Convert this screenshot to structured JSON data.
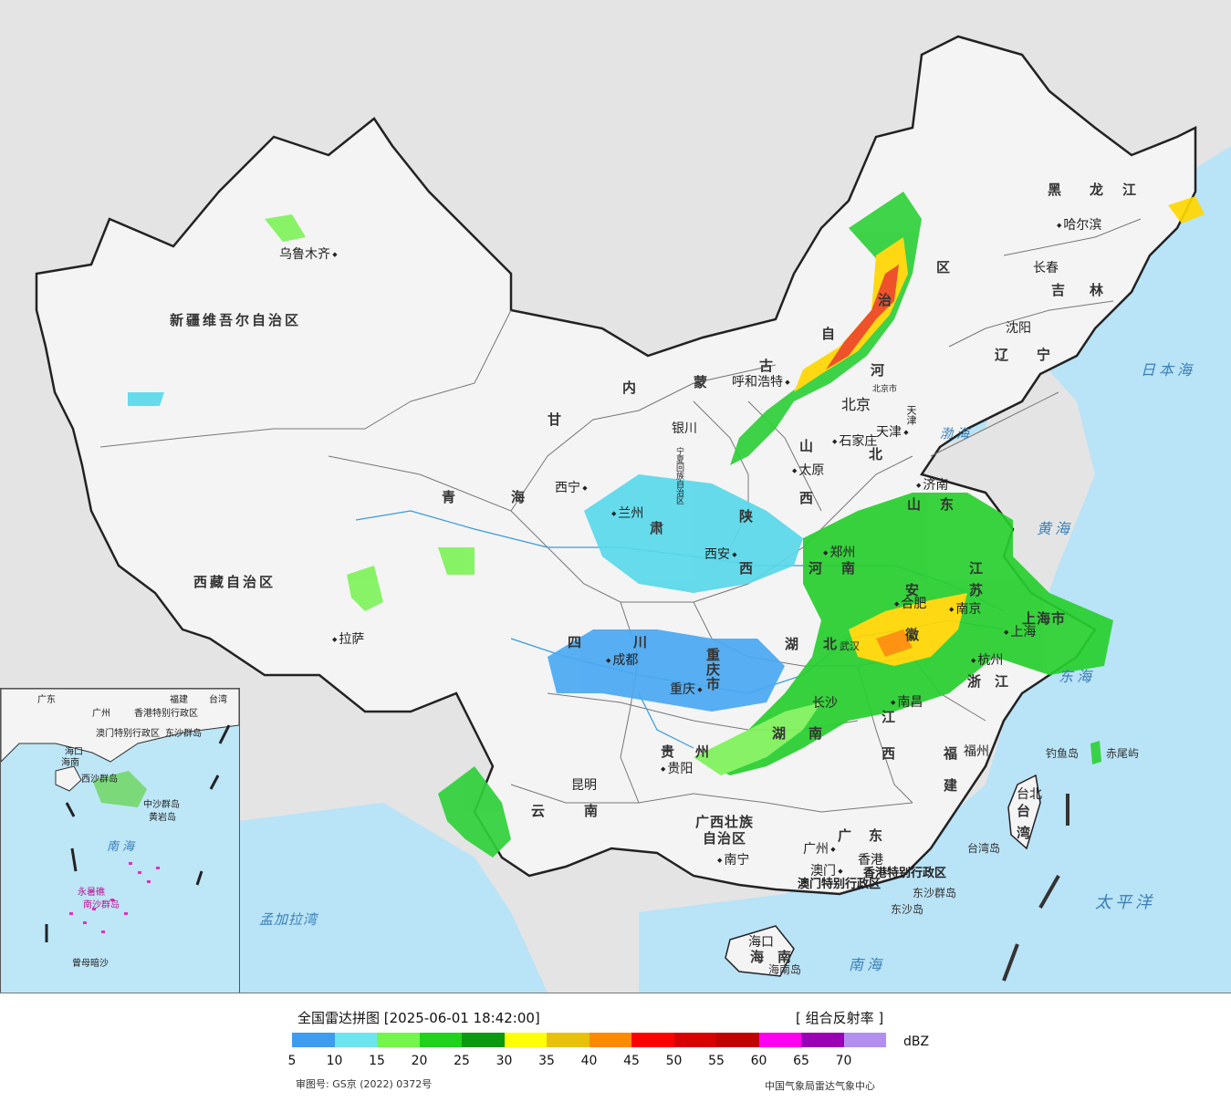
{
  "title": "全国雷达拼图 [2025-06-01 18:42:00]",
  "product": "[ 组合反射率 ]",
  "legend": {
    "unit": "dBZ",
    "colors": [
      "#3e9cf0",
      "#6ce6ee",
      "#72f64a",
      "#1fd21a",
      "#0a9a10",
      "#ffff08",
      "#e8c10a",
      "#ff8a00",
      "#ff0000",
      "#d80000",
      "#c20000",
      "#ff00f0",
      "#9a00b4",
      "#b28ef0"
    ],
    "ticks": [
      "5",
      "10",
      "15",
      "20",
      "25",
      "30",
      "35",
      "40",
      "45",
      "50",
      "55",
      "60",
      "65",
      "70"
    ]
  },
  "approval_number": "审图号: GS京 (2022) 0372号",
  "credit": "中国气象局雷达气象中心",
  "provinces": [
    {
      "name": "新疆维吾尔自治区"
    },
    {
      "name": "西藏自治区"
    },
    {
      "name": "青"
    },
    {
      "name": "海"
    },
    {
      "name": "甘"
    },
    {
      "name": "肃"
    },
    {
      "name": "内"
    },
    {
      "name": "蒙"
    },
    {
      "name": "古"
    },
    {
      "name": "自"
    },
    {
      "name": "治"
    },
    {
      "name": "区"
    },
    {
      "name": "黑"
    },
    {
      "name": "龙"
    },
    {
      "name": "江"
    },
    {
      "name": "吉"
    },
    {
      "name": "林"
    },
    {
      "name": "辽"
    },
    {
      "name": "宁"
    },
    {
      "name": "河"
    },
    {
      "name": "北"
    },
    {
      "name": "山"
    },
    {
      "name": "西"
    },
    {
      "name": "陕"
    },
    {
      "name": "西"
    },
    {
      "name": "宁夏回族自治区"
    },
    {
      "name": "河"
    },
    {
      "name": "南"
    },
    {
      "name": "山"
    },
    {
      "name": "东"
    },
    {
      "name": "江"
    },
    {
      "name": "苏"
    },
    {
      "name": "安"
    },
    {
      "name": "徽"
    },
    {
      "name": "湖"
    },
    {
      "name": "北"
    },
    {
      "name": "四"
    },
    {
      "name": "川"
    },
    {
      "name": "重"
    },
    {
      "name": "庆"
    },
    {
      "name": "市"
    },
    {
      "name": "贵"
    },
    {
      "name": "州"
    },
    {
      "name": "云"
    },
    {
      "name": "南"
    },
    {
      "name": "湖"
    },
    {
      "name": "南"
    },
    {
      "name": "江"
    },
    {
      "name": "西"
    },
    {
      "name": "浙"
    },
    {
      "name": "江"
    },
    {
      "name": "福"
    },
    {
      "name": "建"
    },
    {
      "name": "广"
    },
    {
      "name": "东"
    },
    {
      "name": "广西壮族"
    },
    {
      "name": "自治区"
    },
    {
      "name": "海"
    },
    {
      "name": "南"
    },
    {
      "name": "台"
    },
    {
      "name": "湾"
    },
    {
      "name": "上海市"
    },
    {
      "name": "天津"
    },
    {
      "name": "北京市"
    },
    {
      "name": "香港特别行政区"
    },
    {
      "name": "澳门特别行政区"
    }
  ],
  "cities": [
    "乌鲁木齐",
    "拉萨",
    "西宁",
    "兰州",
    "银川",
    "呼和浩特",
    "北京",
    "天津",
    "石家庄",
    "太原",
    "济南",
    "郑州",
    "西安",
    "合肥",
    "南京",
    "上海",
    "杭州",
    "南昌",
    "长沙",
    "武汉",
    "成都",
    "重庆",
    "贵阳",
    "昆明",
    "南宁",
    "广州",
    "澳门",
    "香港",
    "福州",
    "台北",
    "海口",
    "沈阳",
    "长春",
    "哈尔滨"
  ],
  "seas": [
    "日本海",
    "渤海",
    "黄海",
    "东海",
    "太平洋",
    "南海",
    "孟加拉湾"
  ],
  "islands": [
    "钓鱼岛",
    "赤尾屿",
    "东沙群岛",
    "东沙岛",
    "台湾岛",
    "海南岛"
  ],
  "inset": {
    "labels": [
      "广东",
      "福建",
      "台湾",
      "广州",
      "香港特别行政区",
      "澳门特别行政区",
      "东沙群岛",
      "海口",
      "海南",
      "西沙群岛",
      "中沙群岛",
      "黄岩岛",
      "南海",
      "永暑礁",
      "南沙群岛",
      "曾母暗沙"
    ]
  }
}
